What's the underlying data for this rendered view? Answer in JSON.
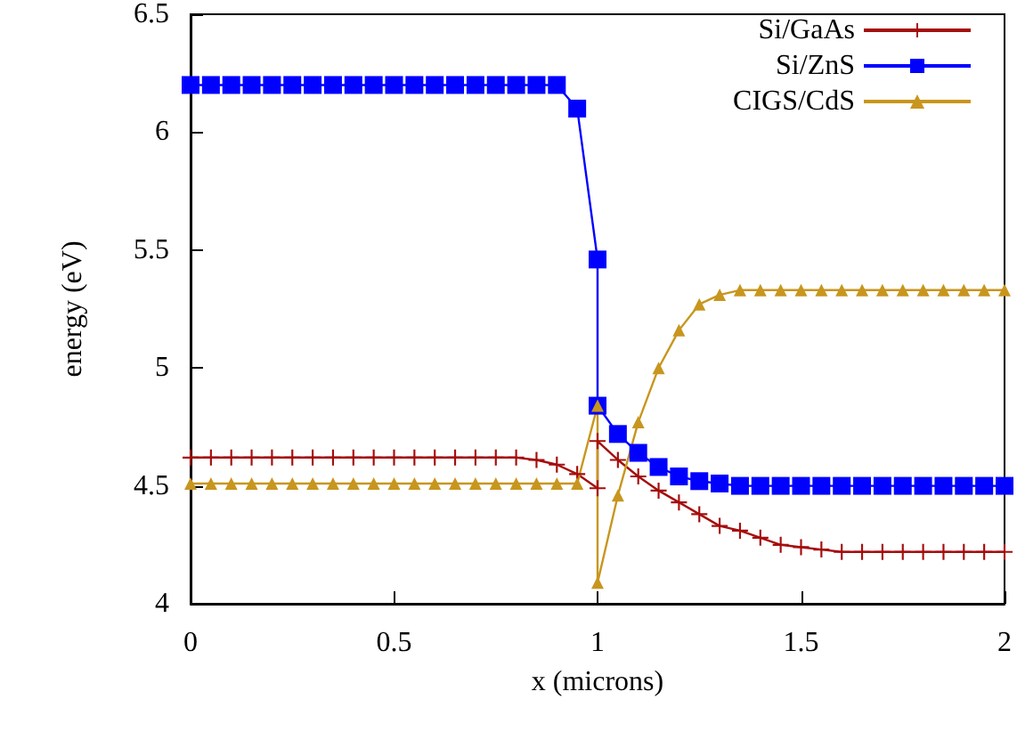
{
  "chart_data": {
    "type": "line",
    "xlabel": "x (microns)",
    "ylabel": "energy (eV)",
    "xlim": [
      0,
      2
    ],
    "xticks": [
      0,
      0.5,
      1,
      1.5,
      2
    ],
    "ylim": [
      4,
      6.5
    ],
    "yticks": [
      4,
      4.5,
      5,
      5.5,
      6,
      6.5
    ],
    "grid": false,
    "legend": "top right",
    "line_style": "solid",
    "x": [
      0,
      0.05,
      0.1,
      0.15,
      0.2,
      0.25,
      0.3,
      0.35,
      0.4,
      0.45,
      0.5,
      0.55,
      0.6,
      0.65,
      0.7,
      0.75,
      0.8,
      0.85,
      0.9,
      0.95,
      1,
      1,
      1.05,
      1.1,
      1.15,
      1.2,
      1.25,
      1.3,
      1.35,
      1.4,
      1.45,
      1.5,
      1.55,
      1.6,
      1.65,
      1.7,
      1.75,
      1.8,
      1.85,
      1.9,
      1.95,
      2
    ],
    "series": [
      {
        "name": "Si/GaAs",
        "color": "#a50d0d",
        "marker": "cross",
        "values": [
          4.62,
          4.62,
          4.62,
          4.62,
          4.62,
          4.62,
          4.62,
          4.62,
          4.62,
          4.62,
          4.62,
          4.62,
          4.62,
          4.62,
          4.62,
          4.62,
          4.62,
          4.61,
          4.59,
          4.55,
          4.49,
          4.69,
          4.61,
          4.54,
          4.48,
          4.43,
          4.38,
          4.33,
          4.31,
          4.28,
          4.25,
          4.24,
          4.23,
          4.22,
          4.22,
          4.22,
          4.22,
          4.22,
          4.22,
          4.22,
          4.22,
          4.22
        ]
      },
      {
        "name": "Si/ZnS",
        "color": "#0000ff",
        "marker": "square",
        "values": [
          6.2,
          6.2,
          6.2,
          6.2,
          6.2,
          6.2,
          6.2,
          6.2,
          6.2,
          6.2,
          6.2,
          6.2,
          6.2,
          6.2,
          6.2,
          6.2,
          6.2,
          6.2,
          6.2,
          6.1,
          5.46,
          4.84,
          4.72,
          4.64,
          4.58,
          4.54,
          4.52,
          4.51,
          4.5,
          4.5,
          4.5,
          4.5,
          4.5,
          4.5,
          4.5,
          4.5,
          4.5,
          4.5,
          4.5,
          4.5,
          4.5,
          4.5
        ]
      },
      {
        "name": "CIGS/CdS",
        "color": "#c8961e",
        "marker": "triangle",
        "values": [
          4.51,
          4.51,
          4.51,
          4.51,
          4.51,
          4.51,
          4.51,
          4.51,
          4.51,
          4.51,
          4.51,
          4.51,
          4.51,
          4.51,
          4.51,
          4.51,
          4.51,
          4.51,
          4.51,
          4.51,
          4.84,
          4.09,
          4.46,
          4.77,
          5.0,
          5.16,
          5.27,
          5.31,
          5.33,
          5.33,
          5.33,
          5.33,
          5.33,
          5.33,
          5.33,
          5.33,
          5.33,
          5.33,
          5.33,
          5.33,
          5.33,
          5.33
        ]
      }
    ]
  }
}
